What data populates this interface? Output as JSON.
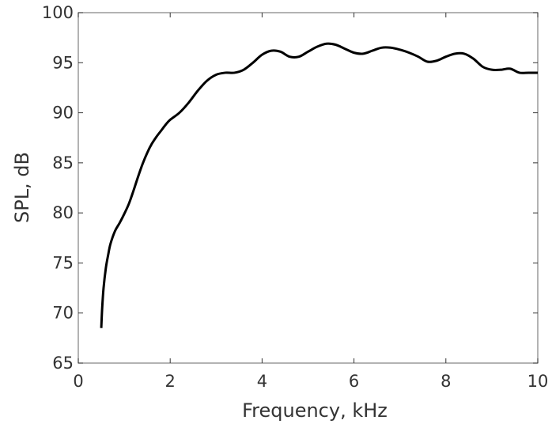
{
  "chart_data": {
    "type": "line",
    "title": "",
    "xlabel": "Frequency, kHz",
    "ylabel": "SPL, dB",
    "xlim": [
      0,
      10
    ],
    "ylim": [
      65,
      100
    ],
    "xticks": [
      0,
      2,
      4,
      6,
      8,
      10
    ],
    "xtick_labels": [
      "0",
      "2",
      "4",
      "6",
      "8",
      "10"
    ],
    "yticks": [
      65,
      70,
      75,
      80,
      85,
      90,
      95,
      100
    ],
    "ytick_labels": [
      "65",
      "70",
      "75",
      "80",
      "85",
      "90",
      "95",
      "100"
    ],
    "grid": false,
    "legend": "none",
    "series": [
      {
        "color": "#000000",
        "x": [
          0.5,
          0.52,
          0.55,
          0.6,
          0.65,
          0.7,
          0.8,
          0.9,
          1.0,
          1.1,
          1.2,
          1.3,
          1.4,
          1.5,
          1.6,
          1.7,
          1.8,
          1.9,
          2.0,
          2.2,
          2.4,
          2.6,
          2.8,
          3.0,
          3.2,
          3.4,
          3.6,
          3.8,
          4.0,
          4.2,
          4.4,
          4.6,
          4.8,
          5.0,
          5.2,
          5.4,
          5.6,
          5.8,
          6.0,
          6.2,
          6.4,
          6.6,
          6.8,
          7.0,
          7.2,
          7.4,
          7.6,
          7.8,
          8.0,
          8.2,
          8.4,
          8.6,
          8.8,
          9.0,
          9.2,
          9.4,
          9.6,
          9.8,
          10.0
        ],
        "y": [
          68.5,
          70.5,
          72.5,
          74.5,
          75.8,
          76.9,
          78.2,
          79.0,
          79.9,
          80.9,
          82.2,
          83.6,
          84.9,
          86.0,
          86.9,
          87.6,
          88.2,
          88.8,
          89.3,
          90.0,
          91.0,
          92.2,
          93.2,
          93.8,
          94.0,
          94.0,
          94.3,
          95.0,
          95.8,
          96.2,
          96.1,
          95.6,
          95.6,
          96.1,
          96.6,
          96.9,
          96.8,
          96.4,
          96.0,
          95.9,
          96.2,
          96.5,
          96.5,
          96.3,
          96.0,
          95.6,
          95.1,
          95.2,
          95.6,
          95.9,
          95.9,
          95.4,
          94.6,
          94.3,
          94.3,
          94.4,
          94.0,
          94.0,
          94.0
        ]
      }
    ]
  }
}
